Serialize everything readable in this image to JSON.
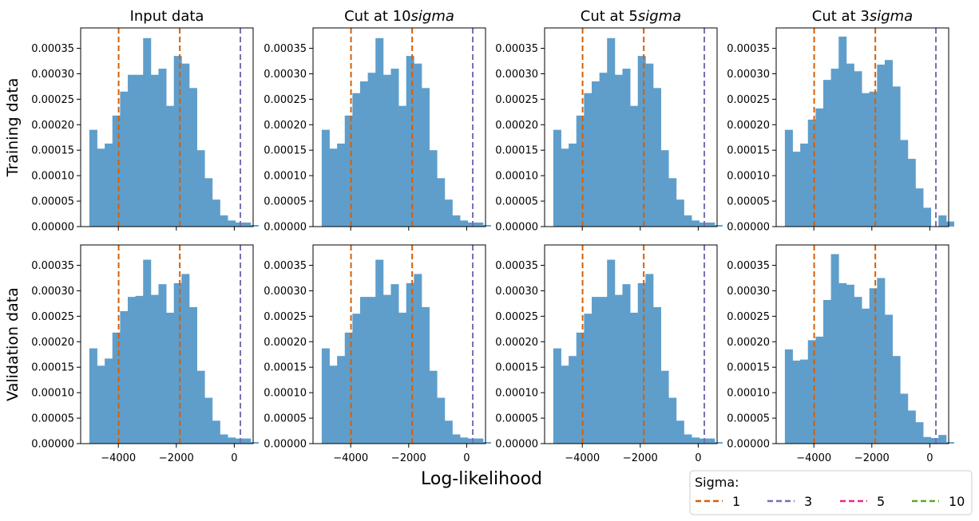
{
  "chart_data": {
    "type": "bar",
    "shared_xlabel": "Log-likelihood",
    "row_labels": [
      "Training data",
      "Validation data"
    ],
    "column_titles": [
      {
        "prefix": "Input data",
        "math": ""
      },
      {
        "prefix": "Cut at 10",
        "math": "sigma"
      },
      {
        "prefix": "Cut at 5",
        "math": "sigma"
      },
      {
        "prefix": "Cut at 3",
        "math": "sigma"
      }
    ],
    "xlim": [
      -5300,
      650
    ],
    "ylim": [
      0,
      0.00039
    ],
    "x_ticks": [
      -4000,
      -2000,
      0
    ],
    "x_tick_labels": [
      "−4000",
      "−2000",
      "0"
    ],
    "y_ticks": [
      0,
      5e-05,
      0.0001,
      0.00015,
      0.0002,
      0.00025,
      0.0003,
      0.00035
    ],
    "y_tick_labels": [
      "0.00000",
      "0.00005",
      "0.00010",
      "0.00015",
      "0.00020",
      "0.00025",
      "0.00030",
      "0.00035"
    ],
    "bar_color": "#5f9ecb",
    "vlines": [
      {
        "sigma": "1",
        "color": "#d95f02",
        "x": [
          -3990,
          -1880
        ]
      },
      {
        "sigma": "3",
        "color": "#7570b3",
        "x": [
          210
        ]
      }
    ],
    "legend": {
      "title": "Sigma:",
      "placement": "lower-right",
      "entries": [
        {
          "label": "1",
          "color": "#d95f02"
        },
        {
          "label": "3",
          "color": "#7570b3"
        },
        {
          "label": "5",
          "color": "#e7298a"
        },
        {
          "label": "10",
          "color": "#66a61e"
        }
      ]
    },
    "panels": [
      {
        "row": 0,
        "col": 0,
        "bins": {
          "start": -5000,
          "width": 265,
          "values": [
            0.00019,
            0.000153,
            0.000163,
            0.000218,
            0.000265,
            0.000298,
            0.000298,
            0.00037,
            0.000298,
            0.00031,
            0.000237,
            0.000335,
            0.00032,
            0.000272,
            0.00015,
            9.5e-05,
            5.3e-05,
            2.2e-05,
            1.2e-05,
            8e-06,
            8e-06,
            3e-06
          ],
          "gap_bins": []
        }
      },
      {
        "row": 0,
        "col": 1,
        "bins": {
          "start": -5000,
          "width": 265,
          "values": [
            0.00019,
            0.000153,
            0.000163,
            0.000218,
            0.000262,
            0.000285,
            0.000302,
            0.00037,
            0.000298,
            0.00031,
            0.000237,
            0.000335,
            0.00032,
            0.000272,
            0.00015,
            9.5e-05,
            5.3e-05,
            2.2e-05,
            1.2e-05,
            8e-06,
            8e-06,
            3e-06
          ],
          "gap_bins": []
        }
      },
      {
        "row": 0,
        "col": 2,
        "bins": {
          "start": -5000,
          "width": 265,
          "values": [
            0.00019,
            0.000153,
            0.000163,
            0.000218,
            0.000262,
            0.000285,
            0.000302,
            0.00037,
            0.000298,
            0.00031,
            0.000237,
            0.000335,
            0.00032,
            0.000272,
            0.00015,
            9.5e-05,
            5.3e-05,
            2.2e-05,
            1.2e-05,
            8e-06,
            8e-06,
            3e-06
          ],
          "gap_bins": []
        }
      },
      {
        "row": 0,
        "col": 3,
        "bins": {
          "start": -5000,
          "width": 265,
          "values": [
            0.00019,
            0.000147,
            0.000163,
            0.00021,
            0.000232,
            0.000288,
            0.00031,
            0.000373,
            0.00032,
            0.000305,
            0.000262,
            0.000265,
            0.000318,
            0.000327,
            0.000275,
            0.00017,
            0.000133,
            7.5e-05,
            3.7e-05,
            0,
            2.2e-05,
            1e-05
          ],
          "gap_bins": [
            19
          ]
        }
      },
      {
        "row": 1,
        "col": 0,
        "bins": {
          "start": -5000,
          "width": 265,
          "values": [
            0.000187,
            0.000153,
            0.000167,
            0.000218,
            0.00026,
            0.000288,
            0.00029,
            0.000361,
            0.000292,
            0.000313,
            0.000257,
            0.000315,
            0.000333,
            0.000268,
            0.000143,
            9e-05,
            4.5e-05,
            1.8e-05,
            1.2e-05,
            1e-05,
            1e-05,
            3e-06
          ],
          "gap_bins": []
        }
      },
      {
        "row": 1,
        "col": 1,
        "bins": {
          "start": -5000,
          "width": 265,
          "values": [
            0.000187,
            0.000153,
            0.000172,
            0.000218,
            0.000255,
            0.000288,
            0.000288,
            0.000361,
            0.000292,
            0.000313,
            0.000257,
            0.000315,
            0.000333,
            0.000268,
            0.000143,
            9e-05,
            4.5e-05,
            1.8e-05,
            1.2e-05,
            1e-05,
            1e-05,
            3e-06
          ],
          "gap_bins": []
        }
      },
      {
        "row": 1,
        "col": 2,
        "bins": {
          "start": -5000,
          "width": 265,
          "values": [
            0.000187,
            0.000153,
            0.000172,
            0.000218,
            0.000255,
            0.000288,
            0.000288,
            0.000361,
            0.000292,
            0.000313,
            0.000257,
            0.000315,
            0.000333,
            0.000268,
            0.000143,
            9e-05,
            4.5e-05,
            1.8e-05,
            1.2e-05,
            1e-05,
            1e-05,
            3e-06
          ],
          "gap_bins": []
        }
      },
      {
        "row": 1,
        "col": 3,
        "bins": {
          "start": -5000,
          "width": 265,
          "values": [
            0.000185,
            0.000163,
            0.000165,
            0.000203,
            0.00021,
            0.000282,
            0.000372,
            0.000315,
            0.000312,
            0.000288,
            0.000265,
            0.000305,
            0.000325,
            0.000253,
            0.000172,
            9.8e-05,
            6.5e-05,
            4.2e-05,
            1.3e-05,
            1.1e-05,
            1.7e-05,
            3e-06
          ],
          "gap_bins": []
        }
      }
    ]
  }
}
